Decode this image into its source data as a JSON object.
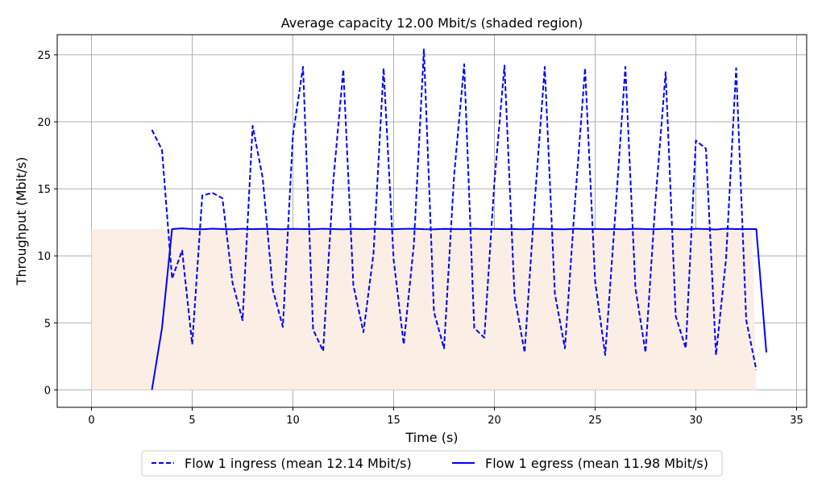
{
  "chart_data": {
    "type": "line",
    "title": "Average capacity 12.00 Mbit/s (shaded region)",
    "xlabel": "Time (s)",
    "ylabel": "Throughput (Mbit/s)",
    "xlim": [
      -1.7,
      35.5
    ],
    "ylim": [
      -1.3,
      26.5
    ],
    "xticks": [
      0,
      5,
      10,
      15,
      20,
      25,
      30,
      35
    ],
    "yticks": [
      0,
      5,
      10,
      15,
      20,
      25
    ],
    "grid": true,
    "legend_position": "bottom-center",
    "capacity": {
      "value": 12.0,
      "x": [
        0,
        32.8,
        33.0
      ],
      "y": [
        12.0,
        12.0,
        0
      ],
      "color": "#fbeee4"
    },
    "series": [
      {
        "name": "Flow 1 ingress (mean 12.14 Mbit/s)",
        "style": "dashed",
        "color": "#0000ff",
        "x": [
          3.0,
          3.5,
          4.0,
          4.5,
          5.0,
          5.5,
          6.0,
          6.5,
          7.0,
          7.5,
          8.0,
          8.5,
          9.0,
          9.5,
          10.0,
          10.5,
          11.0,
          11.5,
          12.0,
          12.5,
          13.0,
          13.5,
          14.0,
          14.5,
          15.0,
          15.5,
          16.0,
          16.5,
          17.0,
          17.5,
          18.0,
          18.5,
          19.0,
          19.5,
          20.0,
          20.5,
          21.0,
          21.5,
          22.0,
          22.5,
          23.0,
          23.5,
          24.0,
          24.5,
          25.0,
          25.5,
          26.0,
          26.5,
          27.0,
          27.5,
          28.0,
          28.5,
          29.0,
          29.5,
          30.0,
          30.5,
          31.0,
          31.5,
          32.0,
          32.5,
          33.0
        ],
        "y": [
          19.4,
          17.9,
          8.3,
          10.4,
          3.4,
          14.5,
          14.7,
          14.3,
          8.0,
          5.2,
          19.7,
          15.8,
          7.5,
          4.7,
          19.0,
          24.1,
          4.5,
          2.9,
          15.5,
          23.9,
          7.8,
          4.3,
          10.2,
          24.0,
          9.7,
          3.4,
          10.8,
          25.4,
          5.8,
          3.1,
          16.0,
          24.3,
          4.6,
          3.9,
          15.5,
          24.2,
          7.0,
          2.8,
          14.0,
          24.1,
          7.2,
          3.1,
          14.0,
          24.0,
          8.1,
          2.6,
          13.1,
          24.1,
          7.6,
          2.8,
          14.2,
          23.7,
          5.5,
          3.1,
          18.6,
          18.0,
          2.6,
          9.8,
          24.0,
          5.2,
          1.5
        ]
      },
      {
        "name": "Flow 1 egress (mean 11.98 Mbit/s)",
        "style": "solid",
        "color": "#0000ff",
        "x": [
          3.0,
          3.5,
          4.0,
          4.5,
          5.0,
          5.5,
          6.0,
          6.5,
          7.0,
          7.5,
          8.0,
          8.5,
          9.0,
          9.5,
          10.0,
          10.5,
          11.0,
          11.5,
          12.0,
          12.5,
          13.0,
          13.5,
          14.0,
          14.5,
          15.0,
          15.5,
          16.0,
          16.5,
          17.0,
          17.5,
          18.0,
          18.5,
          19.0,
          19.5,
          20.0,
          20.5,
          21.0,
          21.5,
          22.0,
          22.5,
          23.0,
          23.5,
          24.0,
          24.5,
          25.0,
          25.5,
          26.0,
          26.5,
          27.0,
          27.5,
          28.0,
          28.5,
          29.0,
          29.5,
          30.0,
          30.5,
          31.0,
          31.5,
          32.0,
          32.5,
          33.0,
          33.5
        ],
        "y": [
          0.0,
          4.6,
          12.0,
          12.05,
          12.0,
          11.98,
          12.03,
          12.0,
          11.98,
          12.02,
          11.99,
          12.01,
          12.0,
          11.98,
          12.01,
          12.0,
          11.99,
          12.02,
          12.0,
          11.98,
          12.01,
          11.99,
          12.02,
          12.0,
          11.99,
          12.01,
          12.02,
          11.99,
          11.98,
          12.01,
          12.0,
          11.99,
          12.02,
          12.0,
          12.01,
          11.99,
          12.0,
          11.98,
          12.02,
          12.01,
          11.99,
          11.98,
          12.02,
          12.0,
          12.01,
          11.99,
          12.0,
          11.98,
          12.02,
          12.0,
          11.99,
          12.01,
          12.0,
          11.98,
          12.02,
          12.0,
          11.97,
          12.03,
          12.0,
          12.0,
          12.0,
          2.8
        ]
      }
    ]
  }
}
